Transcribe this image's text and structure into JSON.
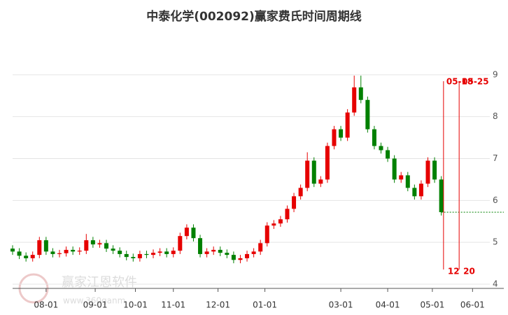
{
  "chart_data": {
    "type": "candlestick",
    "title": "中泰化学(002092)赢家费氏时间周期线",
    "watermark": "赢家江恩软件",
    "watermark_url": "www.360ganm",
    "up_color": "#e60000",
    "down_color": "#008000",
    "x": [
      0,
      3,
      6,
      9,
      12,
      15,
      18,
      21,
      24,
      27,
      30,
      33,
      36,
      39,
      42,
      45,
      48,
      51,
      54,
      57,
      60,
      63,
      66,
      69,
      72,
      75,
      78,
      81,
      84,
      87,
      90,
      93,
      96,
      99,
      102,
      105,
      108,
      111,
      114,
      117,
      120,
      123,
      126,
      129,
      132,
      135,
      138,
      141,
      144,
      147,
      150,
      153,
      156,
      159,
      162,
      165,
      168,
      171,
      174,
      177,
      180,
      183,
      186,
      189,
      192
    ],
    "open": [
      4.85,
      4.78,
      4.68,
      4.62,
      4.7,
      5.05,
      4.78,
      4.72,
      4.74,
      4.82,
      4.78,
      4.8,
      5.05,
      4.95,
      4.98,
      4.85,
      4.8,
      4.72,
      4.65,
      4.62,
      4.72,
      4.7,
      4.75,
      4.78,
      4.72,
      4.8,
      5.15,
      5.35,
      5.1,
      4.72,
      4.78,
      4.82,
      4.75,
      4.7,
      4.58,
      4.62,
      4.72,
      4.78,
      4.98,
      5.4,
      5.45,
      5.55,
      5.8,
      6.1,
      6.3,
      6.95,
      6.4,
      6.5,
      7.3,
      7.7,
      7.5,
      8.1,
      8.7,
      8.4,
      7.7,
      7.3,
      7.2,
      7.0,
      6.5,
      6.6,
      6.3,
      6.1,
      6.4,
      6.95,
      6.5
    ],
    "close": [
      4.78,
      4.68,
      4.62,
      4.7,
      5.05,
      4.78,
      4.72,
      4.74,
      4.82,
      4.78,
      4.8,
      5.05,
      4.95,
      4.98,
      4.85,
      4.8,
      4.72,
      4.65,
      4.62,
      4.72,
      4.7,
      4.75,
      4.78,
      4.72,
      4.8,
      5.15,
      5.35,
      5.1,
      4.72,
      4.78,
      4.82,
      4.75,
      4.7,
      4.58,
      4.62,
      4.72,
      4.78,
      4.98,
      5.4,
      5.45,
      5.55,
      5.8,
      6.1,
      6.3,
      6.95,
      6.4,
      6.5,
      7.3,
      7.7,
      7.5,
      8.1,
      8.7,
      8.4,
      7.7,
      7.3,
      7.2,
      7.0,
      6.5,
      6.6,
      6.3,
      6.1,
      6.4,
      6.95,
      6.5,
      5.72
    ],
    "high": [
      4.93,
      4.86,
      4.76,
      4.78,
      5.13,
      5.13,
      4.86,
      4.82,
      4.9,
      4.9,
      4.88,
      5.2,
      5.13,
      5.06,
      5.06,
      4.93,
      4.88,
      4.8,
      4.73,
      4.8,
      4.8,
      4.83,
      4.86,
      4.86,
      4.88,
      5.23,
      5.43,
      5.43,
      5.18,
      4.86,
      4.9,
      4.9,
      4.83,
      4.78,
      4.7,
      4.8,
      4.86,
      5.06,
      5.48,
      5.53,
      5.63,
      5.88,
      6.18,
      6.38,
      7.15,
      7.03,
      6.58,
      7.38,
      7.78,
      7.78,
      8.18,
      8.98,
      8.98,
      8.48,
      7.78,
      7.38,
      7.28,
      7.08,
      6.68,
      6.68,
      6.38,
      6.48,
      7.03,
      7.03,
      6.58
    ],
    "low": [
      4.7,
      4.6,
      4.54,
      4.54,
      4.62,
      4.7,
      4.64,
      4.64,
      4.66,
      4.7,
      4.7,
      4.72,
      4.87,
      4.87,
      4.77,
      4.72,
      4.64,
      4.57,
      4.54,
      4.54,
      4.62,
      4.62,
      4.67,
      4.64,
      4.64,
      4.72,
      5.07,
      5.02,
      4.64,
      4.64,
      4.7,
      4.67,
      4.62,
      4.5,
      4.5,
      4.54,
      4.64,
      4.7,
      4.9,
      5.32,
      5.37,
      5.47,
      5.72,
      6.02,
      6.22,
      6.32,
      6.32,
      6.42,
      7.22,
      7.42,
      7.42,
      8.02,
      8.32,
      7.62,
      7.22,
      7.12,
      6.92,
      6.42,
      6.42,
      6.22,
      6.02,
      6.02,
      6.32,
      6.42,
      5.64
    ],
    "xlim": [
      0,
      220
    ],
    "xticks": [
      {
        "value": 15,
        "label": "08-01"
      },
      {
        "value": 37,
        "label": "09-01"
      },
      {
        "value": 55,
        "label": "10-01"
      },
      {
        "value": 72,
        "label": "11-01"
      },
      {
        "value": 92,
        "label": "12-01"
      },
      {
        "value": 113,
        "label": "01-01"
      },
      {
        "value": 147,
        "label": "03-01"
      },
      {
        "value": 168,
        "label": "04-01"
      },
      {
        "value": 188,
        "label": "05-01"
      },
      {
        "value": 206,
        "label": "06-01"
      }
    ],
    "ylim": [
      4,
      9.85
    ],
    "yticks": [
      4,
      5,
      6,
      7,
      8,
      9
    ],
    "grid": true,
    "time_lines": [
      {
        "x": 193,
        "top_label": "05-18",
        "bottom_label": "12"
      },
      {
        "x": 200,
        "top_label": "05-25",
        "bottom_label": "20"
      }
    ],
    "level": 5.72
  }
}
